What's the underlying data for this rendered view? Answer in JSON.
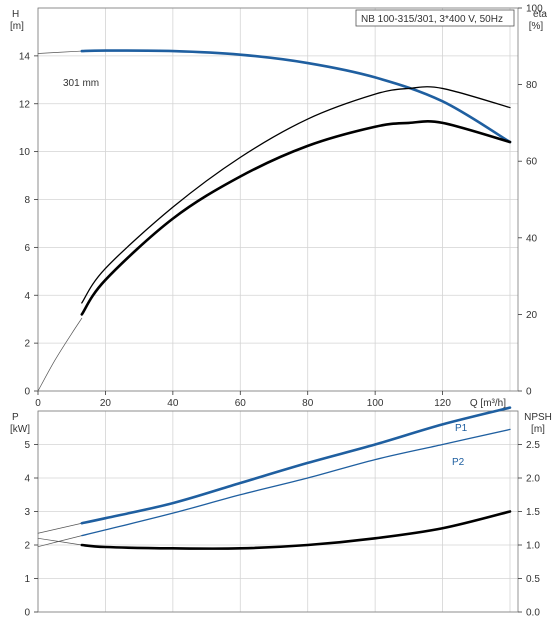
{
  "colors": {
    "blue": "#1f5fa0",
    "black": "#000000",
    "grid": "#d4d4d4",
    "thin": "#555555"
  },
  "chart_data": [
    {
      "id": "head-efficiency",
      "type": "line",
      "title": "NB 100-315/301, 3*400 V, 50Hz",
      "xlabel": "Q [m³/h]",
      "ylabel_left_unit": "[m]",
      "ylabel_left_name": "H",
      "ylabel_right_name": "eta",
      "ylabel_right_unit": "[%]",
      "xlim": [
        0,
        140
      ],
      "ylim_left": [
        0,
        16
      ],
      "ylim_right": [
        0,
        100
      ],
      "x_ticks": [
        0,
        20,
        40,
        60,
        80,
        100,
        120
      ],
      "y_left_ticks": [
        0,
        2,
        4,
        6,
        8,
        10,
        12,
        14
      ],
      "y_right_ticks": [
        0,
        20,
        40,
        60,
        80,
        100
      ],
      "grid": true,
      "annotation": "301 mm",
      "series": [
        {
          "axis": "left",
          "style": "thin",
          "x": [
            0,
            13
          ],
          "y": [
            14.1,
            14.2
          ]
        },
        {
          "axis": "left",
          "style": "blue",
          "x": [
            13,
            20,
            40,
            60,
            80,
            100,
            120,
            140
          ],
          "y": [
            14.2,
            14.22,
            14.2,
            14.05,
            13.7,
            13.1,
            12.1,
            10.4
          ]
        },
        {
          "axis": "right",
          "style": "thin",
          "x": [
            0,
            5,
            10,
            13
          ],
          "y": [
            0,
            8,
            15,
            19
          ]
        },
        {
          "axis": "right",
          "style": "black-thin",
          "x": [
            13,
            20,
            40,
            60,
            80,
            100,
            110,
            120,
            140
          ],
          "y": [
            23,
            32,
            48,
            61,
            71,
            77.5,
            79,
            79,
            74
          ]
        },
        {
          "axis": "right",
          "style": "black-thick",
          "x": [
            13,
            20,
            40,
            60,
            80,
            100,
            110,
            120,
            140
          ],
          "y": [
            20,
            29,
            45,
            56,
            64,
            69,
            70,
            70,
            65
          ]
        }
      ]
    },
    {
      "id": "power-npsh",
      "type": "line",
      "ylabel_left_name": "P",
      "ylabel_left_unit": "[kW]",
      "ylabel_right_name": "NPSH",
      "ylabel_right_unit": "[m]",
      "xlim": [
        0,
        140
      ],
      "ylim_left": [
        0,
        6
      ],
      "ylim_right": [
        0,
        3
      ],
      "y_left_ticks": [
        0,
        1,
        2,
        3,
        4,
        5
      ],
      "y_right_ticks": [
        0.0,
        0.5,
        1.0,
        1.5,
        2.0,
        2.5
      ],
      "grid": true,
      "series": [
        {
          "name": "P1",
          "axis": "left",
          "style": "thin",
          "x": [
            0,
            13
          ],
          "y": [
            2.35,
            2.65
          ]
        },
        {
          "name": "P1",
          "axis": "left",
          "style": "blue",
          "x": [
            13,
            20,
            40,
            60,
            80,
            100,
            120,
            140
          ],
          "y": [
            2.65,
            2.8,
            3.25,
            3.85,
            4.45,
            5.0,
            5.6,
            6.1
          ]
        },
        {
          "name": "P2",
          "axis": "left",
          "style": "thin",
          "x": [
            0,
            13
          ],
          "y": [
            1.95,
            2.28
          ]
        },
        {
          "name": "P2",
          "axis": "left",
          "style": "blue-thin",
          "x": [
            13,
            20,
            40,
            60,
            80,
            100,
            120,
            140
          ],
          "y": [
            2.28,
            2.45,
            2.95,
            3.5,
            4.0,
            4.55,
            5.0,
            5.45
          ]
        },
        {
          "axis": "right",
          "style": "thin",
          "x": [
            0,
            13
          ],
          "y": [
            1.1,
            1.0
          ]
        },
        {
          "axis": "right",
          "style": "black-thick",
          "x": [
            13,
            20,
            40,
            60,
            80,
            100,
            120,
            140
          ],
          "y": [
            1.0,
            0.97,
            0.95,
            0.95,
            1.0,
            1.1,
            1.25,
            1.5
          ]
        }
      ]
    }
  ]
}
